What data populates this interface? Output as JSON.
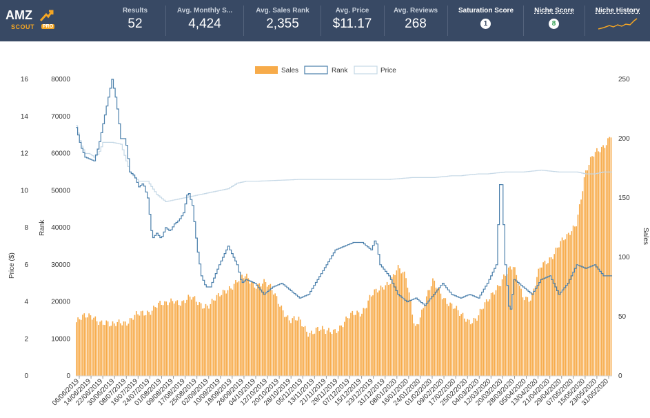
{
  "header": {
    "logo": {
      "main": "AMZ",
      "sub": "SCOUT",
      "badge": "PRO"
    },
    "metrics": [
      {
        "label": "Results",
        "value": "52"
      },
      {
        "label": "Avg. Monthly S...",
        "value": "4,424"
      },
      {
        "label": "Avg. Sales Rank",
        "value": "2,355"
      },
      {
        "label": "Avg. Price",
        "value": "$11.17"
      },
      {
        "label": "Avg. Reviews",
        "value": "268"
      }
    ],
    "saturation": {
      "label": "Saturation Score",
      "value": "1"
    },
    "niche_score": {
      "label": "Niche Score",
      "value": "8"
    },
    "niche_history": {
      "label": "Niche History"
    },
    "colors": {
      "bar_bg": "#384964",
      "accent": "#f5a623",
      "green": "#2f9e4f"
    }
  },
  "chart_data": {
    "type": "bar+line",
    "legend": [
      "Sales",
      "Rank",
      "Price"
    ],
    "legend_position": "top-center",
    "colors": {
      "sales": "#f7ab4a",
      "rank": "#4a7fab",
      "price": "#c5d8e6"
    },
    "x_tick_labels": [
      "06/06/2019",
      "14/06/2019",
      "22/06/2019",
      "30/06/2019",
      "08/07/2019",
      "16/07/2019",
      "24/07/2019",
      "01/08/2019",
      "09/08/2019",
      "17/08/2019",
      "25/08/2019",
      "02/09/2019",
      "10/09/2019",
      "18/09/2019",
      "26/09/2019",
      "04/10/2019",
      "12/10/2019",
      "20/10/2019",
      "28/10/2019",
      "05/11/2019",
      "13/11/2019",
      "21/11/2019",
      "29/11/2019",
      "07/12/2019",
      "15/12/2019",
      "23/12/2019",
      "31/12/2019",
      "08/01/2020",
      "16/01/2020",
      "24/01/2020",
      "01/02/2020",
      "09/02/2020",
      "17/02/2020",
      "25/02/2020",
      "04/03/2020",
      "12/03/2020",
      "20/03/2020",
      "28/03/2020",
      "05/04/2020",
      "13/04/2020",
      "21/04/2020",
      "29/04/2020",
      "07/05/2020",
      "15/05/2020",
      "23/05/2020",
      "31/05/2020"
    ],
    "price_axis": {
      "label": "Price ($)",
      "min": 0,
      "max": 16,
      "ticks": [
        0,
        2,
        4,
        6,
        8,
        10,
        12,
        14,
        16
      ]
    },
    "rank_axis": {
      "label": "Rank",
      "min": 0,
      "max": 80000,
      "ticks": [
        0,
        10000,
        20000,
        30000,
        40000,
        50000,
        60000,
        70000,
        80000
      ]
    },
    "sales_axis": {
      "label": "Sales",
      "min": 0,
      "max": 250,
      "ticks": [
        0,
        50,
        100,
        150,
        200,
        250
      ]
    },
    "sales_keypoints": [
      [
        0,
        45
      ],
      [
        2,
        48
      ],
      [
        4,
        52
      ],
      [
        6,
        45
      ],
      [
        8,
        40
      ],
      [
        10,
        48
      ],
      [
        12,
        46
      ],
      [
        14,
        50
      ],
      [
        16,
        55
      ],
      [
        18,
        60
      ],
      [
        20,
        58
      ],
      [
        22,
        66
      ],
      [
        24,
        62
      ],
      [
        26,
        64
      ],
      [
        28,
        62
      ],
      [
        30,
        60
      ],
      [
        32,
        65
      ],
      [
        34,
        75
      ],
      [
        36,
        80
      ],
      [
        38,
        82
      ],
      [
        40,
        78
      ],
      [
        42,
        80
      ],
      [
        44,
        70
      ],
      [
        46,
        60
      ],
      [
        48,
        47
      ],
      [
        50,
        45
      ],
      [
        52,
        38
      ],
      [
        54,
        40
      ],
      [
        56,
        35
      ],
      [
        58,
        40
      ],
      [
        60,
        45
      ],
      [
        62,
        50
      ],
      [
        64,
        55
      ],
      [
        66,
        68
      ],
      [
        68,
        70
      ],
      [
        70,
        80
      ],
      [
        72,
        92
      ],
      [
        74,
        80
      ],
      [
        76,
        42
      ],
      [
        78,
        60
      ],
      [
        80,
        78
      ],
      [
        82,
        70
      ],
      [
        84,
        60
      ],
      [
        86,
        50
      ],
      [
        88,
        48
      ],
      [
        90,
        50
      ],
      [
        92,
        60
      ],
      [
        94,
        75
      ],
      [
        96,
        85
      ],
      [
        98,
        90
      ],
      [
        100,
        70
      ],
      [
        102,
        65
      ],
      [
        104,
        90
      ],
      [
        106,
        100
      ],
      [
        108,
        110
      ],
      [
        110,
        115
      ],
      [
        112,
        130
      ],
      [
        114,
        170
      ],
      [
        116,
        185
      ],
      [
        118,
        195
      ],
      [
        120,
        205
      ]
    ],
    "rank_keypoints": [
      [
        0,
        67000
      ],
      [
        1,
        62000
      ],
      [
        2,
        59000
      ],
      [
        3,
        58500
      ],
      [
        4,
        58000
      ],
      [
        5,
        62000
      ],
      [
        6,
        68000
      ],
      [
        7,
        74000
      ],
      [
        8,
        80000
      ],
      [
        9,
        74000
      ],
      [
        10,
        64000
      ],
      [
        11,
        64000
      ],
      [
        12,
        55000
      ],
      [
        13,
        54000
      ],
      [
        14,
        51000
      ],
      [
        15,
        52000
      ],
      [
        16,
        48000
      ],
      [
        17,
        37000
      ],
      [
        18,
        38500
      ],
      [
        19,
        37000
      ],
      [
        20,
        40000
      ],
      [
        21,
        39000
      ],
      [
        22,
        41000
      ],
      [
        23,
        42000
      ],
      [
        24,
        44000
      ],
      [
        25,
        50000
      ],
      [
        26,
        46000
      ],
      [
        27,
        35000
      ],
      [
        28,
        27000
      ],
      [
        29,
        24000
      ],
      [
        30,
        24000
      ],
      [
        32,
        30000
      ],
      [
        34,
        35000
      ],
      [
        36,
        30000
      ],
      [
        37,
        25000
      ],
      [
        38,
        26000
      ],
      [
        40,
        25000
      ],
      [
        42,
        22000
      ],
      [
        44,
        24000
      ],
      [
        46,
        25000
      ],
      [
        48,
        23000
      ],
      [
        50,
        21000
      ],
      [
        52,
        22000
      ],
      [
        54,
        26000
      ],
      [
        56,
        30000
      ],
      [
        58,
        34000
      ],
      [
        60,
        35000
      ],
      [
        62,
        36000
      ],
      [
        64,
        36000
      ],
      [
        66,
        34000
      ],
      [
        67,
        37000
      ],
      [
        68,
        30000
      ],
      [
        70,
        27000
      ],
      [
        72,
        22000
      ],
      [
        74,
        20000
      ],
      [
        76,
        21000
      ],
      [
        78,
        19000
      ],
      [
        80,
        22000
      ],
      [
        82,
        25000
      ],
      [
        84,
        22000
      ],
      [
        86,
        21000
      ],
      [
        88,
        22000
      ],
      [
        90,
        21000
      ],
      [
        92,
        25000
      ],
      [
        94,
        30000
      ],
      [
        95,
        57000
      ],
      [
        96,
        30000
      ],
      [
        97,
        16000
      ],
      [
        98,
        26000
      ],
      [
        100,
        24000
      ],
      [
        102,
        22000
      ],
      [
        104,
        26000
      ],
      [
        106,
        27000
      ],
      [
        108,
        22000
      ],
      [
        110,
        25000
      ],
      [
        112,
        30000
      ],
      [
        114,
        29000
      ],
      [
        116,
        30000
      ],
      [
        118,
        27000
      ]
    ],
    "price_keypoints": [
      [
        0,
        13.5
      ],
      [
        1,
        12.5
      ],
      [
        2,
        12
      ],
      [
        3,
        12
      ],
      [
        4,
        11.8
      ],
      [
        5,
        12
      ],
      [
        6,
        12.6
      ],
      [
        8,
        12.6
      ],
      [
        10,
        12.5
      ],
      [
        12,
        11
      ],
      [
        14,
        10.5
      ],
      [
        16,
        10.5
      ],
      [
        18,
        9.8
      ],
      [
        20,
        9.4
      ],
      [
        22,
        9.5
      ],
      [
        24,
        9.6
      ],
      [
        26,
        9.7
      ],
      [
        28,
        9.8
      ],
      [
        30,
        9.9
      ],
      [
        32,
        10.0
      ],
      [
        34,
        10.1
      ],
      [
        36,
        10.4
      ],
      [
        38,
        10.5
      ],
      [
        40,
        10.5
      ],
      [
        50,
        10.6
      ],
      [
        60,
        10.6
      ],
      [
        70,
        10.6
      ],
      [
        75,
        10.7
      ],
      [
        80,
        10.7
      ],
      [
        84,
        10.8
      ],
      [
        86,
        10.8
      ],
      [
        90,
        10.9
      ],
      [
        92,
        10.9
      ],
      [
        96,
        11.0
      ],
      [
        100,
        11.0
      ],
      [
        104,
        11.1
      ],
      [
        108,
        11.0
      ],
      [
        112,
        11.0
      ],
      [
        114,
        10.9
      ],
      [
        116,
        10.9
      ],
      [
        118,
        11.0
      ]
    ],
    "bar_count": 340
  }
}
